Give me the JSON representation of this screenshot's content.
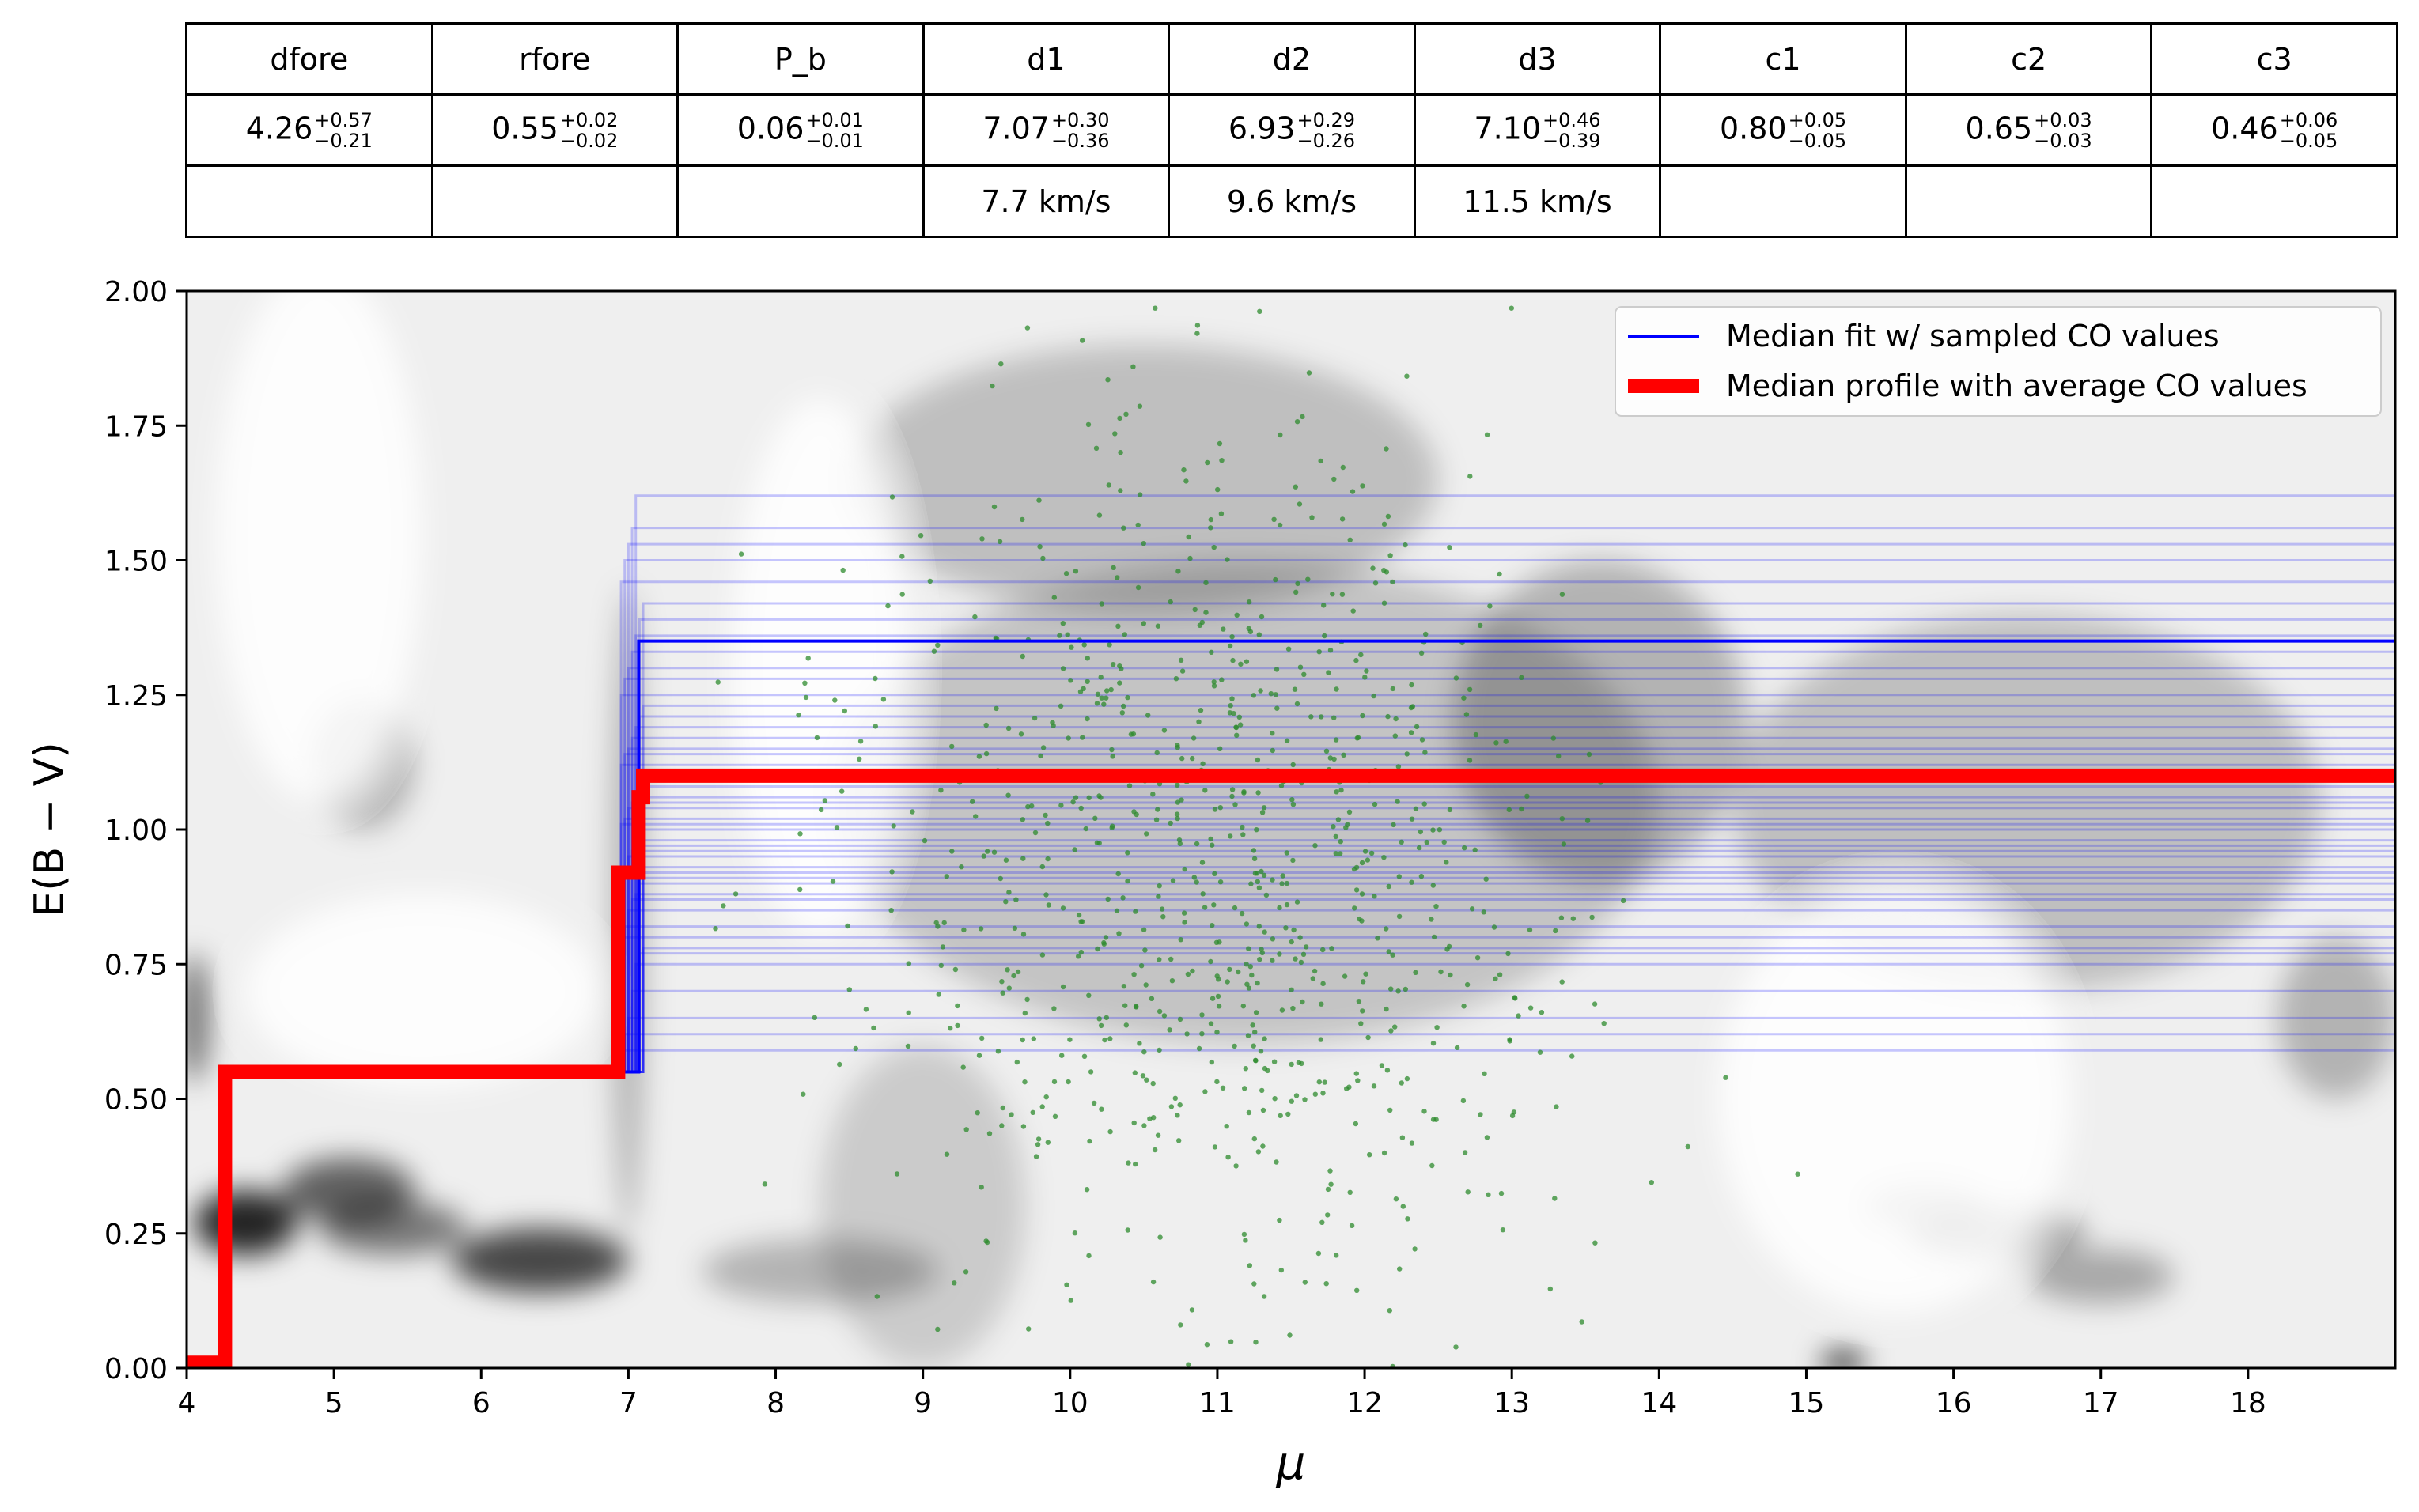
{
  "table": {
    "headers": [
      "dfore",
      "rfore",
      "P_b",
      "d1",
      "d2",
      "d3",
      "c1",
      "c2",
      "c3"
    ],
    "values": [
      {
        "v": "4.26",
        "plus": "+0.57",
        "minus": "−0.21"
      },
      {
        "v": "0.55",
        "plus": "+0.02",
        "minus": "−0.02"
      },
      {
        "v": "0.06",
        "plus": "+0.01",
        "minus": "−0.01"
      },
      {
        "v": "7.07",
        "plus": "+0.30",
        "minus": "−0.36"
      },
      {
        "v": "6.93",
        "plus": "+0.29",
        "minus": "−0.26"
      },
      {
        "v": "7.10",
        "plus": "+0.46",
        "minus": "−0.39"
      },
      {
        "v": "0.80",
        "plus": "+0.05",
        "minus": "−0.05"
      },
      {
        "v": "0.65",
        "plus": "+0.03",
        "minus": "−0.03"
      },
      {
        "v": "0.46",
        "plus": "+0.06",
        "minus": "−0.05"
      }
    ],
    "velocities": [
      "",
      "",
      "",
      "7.7 km/s",
      "9.6 km/s",
      "11.5 km/s",
      "",
      "",
      ""
    ]
  },
  "colors": {
    "median_fit": "#0000ff",
    "median_profile": "#ff0000",
    "stars": "#2e8b2e",
    "density": "#000000"
  },
  "chart_data": {
    "type": "line",
    "xlabel": "μ",
    "ylabel": "E(B − V)",
    "xlim": [
      4,
      19
    ],
    "ylim": [
      0,
      2
    ],
    "x_ticks": [
      4,
      5,
      6,
      7,
      8,
      9,
      10,
      11,
      12,
      13,
      14,
      15,
      16,
      17,
      18
    ],
    "y_ticks": [
      0.0,
      0.25,
      0.5,
      0.75,
      1.0,
      1.25,
      1.5,
      1.75,
      2.0
    ],
    "x_tick_labels": [
      "4",
      "5",
      "6",
      "7",
      "8",
      "9",
      "10",
      "11",
      "12",
      "13",
      "14",
      "15",
      "16",
      "17",
      "18"
    ],
    "y_tick_labels": [
      "0.00",
      "0.25",
      "0.50",
      "0.75",
      "1.00",
      "1.25",
      "1.50",
      "1.75",
      "2.00"
    ],
    "grid": false,
    "legend_position": "top-right",
    "legend": [
      {
        "label": "Median fit w/ sampled CO values",
        "color": "#0000ff",
        "style": "thin"
      },
      {
        "label": "Median profile with average CO values",
        "color": "#ff0000",
        "style": "thick"
      }
    ],
    "series": [
      {
        "name": "Median fit w/ sampled CO values",
        "x": [
          4,
          4.26,
          4.26,
          7.07,
          7.07,
          19
        ],
        "y": [
          0,
          0,
          0.55,
          0.55,
          1.35,
          1.35
        ]
      },
      {
        "name": "Median profile with average CO values",
        "x": [
          4,
          4.26,
          4.26,
          6.93,
          6.93,
          7.07,
          7.07,
          7.1,
          7.1,
          19
        ],
        "y": [
          0.01,
          0.01,
          0.55,
          0.55,
          0.92,
          0.92,
          1.06,
          1.06,
          1.1,
          1.1
        ]
      }
    ],
    "sampled_levels": [
      0.59,
      0.62,
      0.65,
      0.7,
      0.75,
      0.77,
      0.78,
      0.8,
      0.82,
      0.85,
      0.87,
      0.88,
      0.9,
      0.91,
      0.92,
      0.93,
      0.95,
      0.96,
      0.97,
      0.98,
      1.0,
      1.01,
      1.02,
      1.04,
      1.05,
      1.06,
      1.08,
      1.1,
      1.12,
      1.14,
      1.15,
      1.17,
      1.19,
      1.21,
      1.23,
      1.25,
      1.28,
      1.3,
      1.33,
      1.36,
      1.39,
      1.42,
      1.46,
      1.5,
      1.53,
      1.56,
      1.62
    ],
    "density_blobs": [
      {
        "x": 4.4,
        "y": 0.27,
        "sx": 0.35,
        "sy": 0.06,
        "a": 0.85
      },
      {
        "x": 5.1,
        "y": 0.33,
        "sx": 0.45,
        "sy": 0.06,
        "a": 0.6
      },
      {
        "x": 6.4,
        "y": 0.2,
        "sx": 0.6,
        "sy": 0.06,
        "a": 0.7
      },
      {
        "x": 5.4,
        "y": 0.26,
        "sx": 0.5,
        "sy": 0.05,
        "a": 0.5
      },
      {
        "x": 4.05,
        "y": 0.65,
        "sx": 0.1,
        "sy": 0.12,
        "a": 0.55
      },
      {
        "x": 5.2,
        "y": 1.12,
        "sx": 0.35,
        "sy": 0.12,
        "a": 0.25
      },
      {
        "x": 7.0,
        "y": 0.85,
        "sx": 0.12,
        "sy": 0.6,
        "a": 0.25
      },
      {
        "x": 8.3,
        "y": 0.18,
        "sx": 0.8,
        "sy": 0.06,
        "a": 0.25
      },
      {
        "x": 10.5,
        "y": 1.65,
        "sx": 2.0,
        "sy": 0.25,
        "a": 0.2
      },
      {
        "x": 11.2,
        "y": 1.05,
        "sx": 2.8,
        "sy": 0.45,
        "a": 0.18
      },
      {
        "x": 13.6,
        "y": 1.2,
        "sx": 1.0,
        "sy": 0.3,
        "a": 0.25
      },
      {
        "x": 16.5,
        "y": 1.05,
        "sx": 2.0,
        "sy": 0.35,
        "a": 0.2
      },
      {
        "x": 18.6,
        "y": 0.65,
        "sx": 0.4,
        "sy": 0.15,
        "a": 0.25
      },
      {
        "x": 16.3,
        "y": 0.25,
        "sx": 0.6,
        "sy": 0.05,
        "a": 0.35
      },
      {
        "x": 17.0,
        "y": 0.17,
        "sx": 0.5,
        "sy": 0.05,
        "a": 0.3
      },
      {
        "x": 15.8,
        "y": 0.3,
        "sx": 0.4,
        "sy": 0.04,
        "a": 0.25
      },
      {
        "x": 15.25,
        "y": 0.01,
        "sx": 0.15,
        "sy": 0.02,
        "a": 0.9
      },
      {
        "x": 9.0,
        "y": 0.3,
        "sx": 0.7,
        "sy": 0.3,
        "a": 0.15
      }
    ],
    "stars": {
      "count": 900,
      "x_mean": 11.0,
      "x_sd": 1.25,
      "y_mean": 0.95,
      "y_sd": 0.42
    }
  }
}
